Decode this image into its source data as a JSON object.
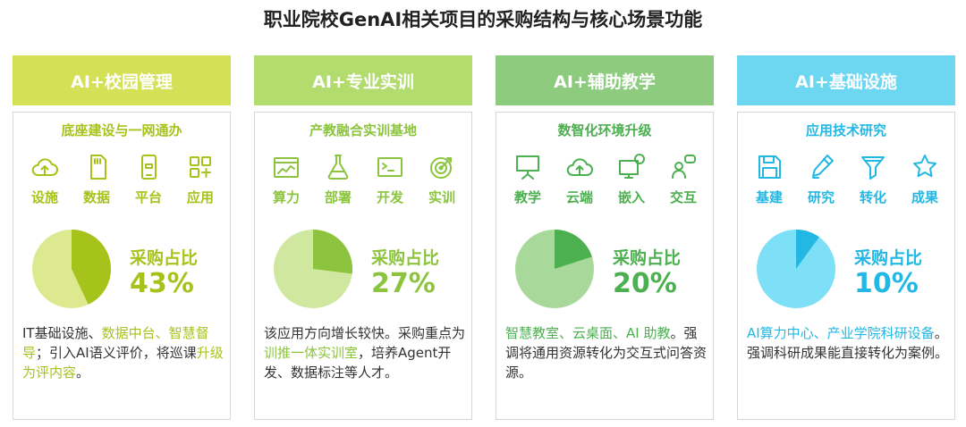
{
  "title": "职业院校GenAI相关项目的采购结构与核心场景功能",
  "chart_data": {
    "type": "pie",
    "title": "职业院校GenAI相关项目的采购结构与核心场景功能",
    "categories": [
      "AI+校园管理",
      "AI+专业实训",
      "AI+辅助教学",
      "AI+基础设施"
    ],
    "values": [
      43,
      27,
      20,
      10
    ],
    "value_labels": [
      "43%",
      "27%",
      "20%",
      "10%"
    ],
    "series": [
      {
        "values": [
          43,
          27,
          20,
          10
        ]
      }
    ]
  },
  "cards": [
    {
      "header": "AI+校园管理",
      "subtitle": "底座建设与一网通办",
      "color": "#d4e157",
      "accent": "#a6c31c",
      "pie_light": "#dde98f",
      "icons": [
        {
          "name": "cloud-upload-icon",
          "label": "设施"
        },
        {
          "name": "sd-card-icon",
          "label": "数据"
        },
        {
          "name": "tablet-icon",
          "label": "平台"
        },
        {
          "name": "apps-grid-icon",
          "label": "应用"
        }
      ],
      "share_label": "采购占比",
      "share_value": "43%",
      "share": 43,
      "desc": [
        {
          "t": "IT基础设施、",
          "hl": false
        },
        {
          "t": "数据中台、智慧督导",
          "hl": true
        },
        {
          "t": "；引入AI语义评价，将巡课",
          "hl": false
        },
        {
          "t": "升级为评内容",
          "hl": true
        },
        {
          "t": "。",
          "hl": false
        }
      ]
    },
    {
      "header": "AI+专业实训",
      "subtitle": "产教融合实训基地",
      "color": "#b3dc6e",
      "accent": "#8cc43f",
      "pie_light": "#cfe79f",
      "icons": [
        {
          "name": "window-chart-icon",
          "label": "算力"
        },
        {
          "name": "flask-icon",
          "label": "部署"
        },
        {
          "name": "terminal-icon",
          "label": "开发"
        },
        {
          "name": "target-icon",
          "label": "实训"
        }
      ],
      "share_label": "采购占比",
      "share_value": "27%",
      "share": 27,
      "desc": [
        {
          "t": "该应用方向增长较快。采购重点为",
          "hl": false
        },
        {
          "t": "训推一体实训室",
          "hl": true
        },
        {
          "t": "，培养Agent开发、数据标注等人才。",
          "hl": false
        }
      ]
    },
    {
      "header": "AI+辅助教学",
      "subtitle": "数智化环境升级",
      "color": "#8dcc7e",
      "accent": "#4caf50",
      "pie_light": "#a8d99a",
      "icons": [
        {
          "name": "presentation-icon",
          "label": "教学"
        },
        {
          "name": "cloud-upload-icon",
          "label": "云端"
        },
        {
          "name": "monitor-chat-icon",
          "label": "嵌入"
        },
        {
          "name": "people-chat-icon",
          "label": "交互"
        }
      ],
      "share_label": "采购占比",
      "share_value": "20%",
      "share": 20,
      "desc": [
        {
          "t": "智慧教室、云桌面、AI 助教",
          "hl": true
        },
        {
          "t": "。强调将通用资源转化为交互式问答资源。",
          "hl": false
        }
      ]
    },
    {
      "header": "AI+基础设施",
      "subtitle": "应用技术研究",
      "color": "#6dd6f0",
      "accent": "#22b8e3",
      "pie_light": "#7ee0f6",
      "icons": [
        {
          "name": "floppy-disk-icon",
          "label": "基建"
        },
        {
          "name": "pen-icon",
          "label": "研究"
        },
        {
          "name": "funnel-icon",
          "label": "转化"
        },
        {
          "name": "star-icon",
          "label": "成果"
        }
      ],
      "share_label": "采购占比",
      "share_value": "10%",
      "share": 10,
      "desc": [
        {
          "t": "AI算力中心、产业学院科研设备",
          "hl": true
        },
        {
          "t": "。强调科研成果能直接转化为案例。",
          "hl": false
        }
      ]
    }
  ]
}
